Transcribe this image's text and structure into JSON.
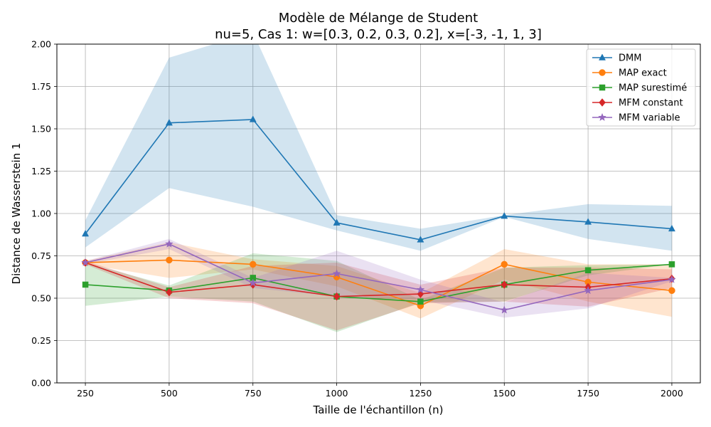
{
  "chart_data": {
    "type": "line",
    "title": "Modèle de Mélange de Student",
    "subtitle": "nu=5, Cas 1: w=[0.3, 0.2, 0.3, 0.2], x=[-3, -1, 1, 3]",
    "xlabel": "Taille de l'échantillon (n)",
    "ylabel": "Distance de Wasserstein 1",
    "x": [
      250,
      500,
      750,
      1000,
      1250,
      1500,
      1750,
      2000
    ],
    "xlim": [
      165,
      2085
    ],
    "ylim": [
      0,
      2.0
    ],
    "xticks": [
      "250",
      "500",
      "750",
      "1000",
      "1250",
      "1500",
      "1750",
      "2000"
    ],
    "yticks": [
      "0.00",
      "0.25",
      "0.50",
      "0.75",
      "1.00",
      "1.25",
      "1.50",
      "1.75",
      "2.00"
    ],
    "grid": true,
    "legend_position": "top-right",
    "series": [
      {
        "name": "DMM",
        "color": "#1f77b4",
        "marker": "triangle",
        "values": [
          0.88,
          1.535,
          1.555,
          0.945,
          0.845,
          0.985,
          0.95,
          0.91
        ],
        "lower": [
          0.8,
          1.15,
          1.04,
          0.9,
          0.78,
          0.98,
          0.85,
          0.78
        ],
        "upper": [
          0.96,
          1.92,
          2.07,
          0.99,
          0.91,
          0.99,
          1.055,
          1.045
        ]
      },
      {
        "name": "MAP exact",
        "color": "#ff7f0e",
        "marker": "circle",
        "values": [
          0.71,
          0.725,
          0.7,
          0.625,
          0.455,
          0.7,
          0.595,
          0.545
        ],
        "lower": [
          0.7,
          0.62,
          0.67,
          0.57,
          0.38,
          0.61,
          0.48,
          0.39
        ],
        "upper": [
          0.72,
          0.83,
          0.73,
          0.69,
          0.53,
          0.79,
          0.7,
          0.7
        ]
      },
      {
        "name": "MAP surestimé",
        "color": "#2ca02c",
        "marker": "square",
        "values": [
          0.58,
          0.545,
          0.62,
          0.51,
          0.48,
          0.58,
          0.665,
          0.7
        ],
        "lower": [
          0.455,
          0.51,
          0.48,
          0.3,
          0.475,
          0.48,
          0.635,
          0.7
        ],
        "upper": [
          0.71,
          0.575,
          0.765,
          0.72,
          0.49,
          0.68,
          0.695,
          0.7
        ]
      },
      {
        "name": "MFM constant",
        "color": "#d62728",
        "marker": "diamond",
        "values": [
          0.71,
          0.535,
          0.58,
          0.51,
          0.525,
          0.58,
          0.565,
          0.615
        ],
        "lower": [
          0.7,
          0.5,
          0.47,
          0.31,
          0.47,
          0.48,
          0.45,
          0.56
        ],
        "upper": [
          0.72,
          0.565,
          0.69,
          0.71,
          0.58,
          0.68,
          0.68,
          0.67
        ]
      },
      {
        "name": "MFM variable",
        "color": "#9467bd",
        "marker": "star",
        "values": [
          0.71,
          0.82,
          0.59,
          0.645,
          0.55,
          0.43,
          0.545,
          0.61
        ],
        "lower": [
          0.7,
          0.79,
          0.56,
          0.51,
          0.49,
          0.385,
          0.44,
          0.6
        ],
        "upper": [
          0.72,
          0.85,
          0.62,
          0.78,
          0.61,
          0.475,
          0.65,
          0.62
        ]
      }
    ]
  }
}
